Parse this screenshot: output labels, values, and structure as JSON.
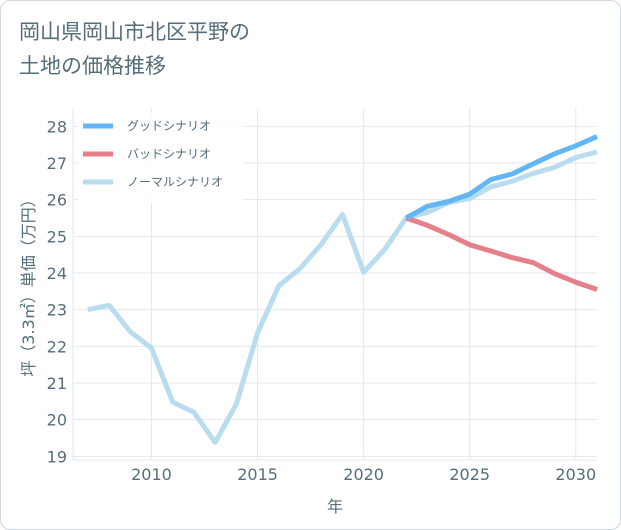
{
  "title": {
    "line1": "岡山県岡山市北区平野の",
    "line2": "土地の価格推移"
  },
  "colors": {
    "good": "#64b5f6",
    "bad": "#e57f8a",
    "normal": "#b9dcee",
    "grid": "#e3e8ec",
    "text": "#546e7a"
  },
  "chart_data": {
    "type": "line",
    "title": "岡山県岡山市北区平野の土地の価格推移",
    "xlabel": "年",
    "ylabel": "坪（3.3㎡）単価（万円）",
    "xlim": [
      2006.3,
      2031
    ],
    "ylim": [
      18.9,
      28.5
    ],
    "xticks": [
      2010,
      2015,
      2020,
      2025,
      2030
    ],
    "yticks": [
      19,
      20,
      21,
      22,
      23,
      24,
      25,
      26,
      27,
      28
    ],
    "grid": true,
    "legend_position": "top-left",
    "series": [
      {
        "name": "グッドシナリオ",
        "color": "#64b5f6",
        "x": [
          2022,
          2023,
          2024,
          2025,
          2026,
          2027,
          2028,
          2029,
          2030,
          2031
        ],
        "y": [
          25.5,
          25.82,
          25.95,
          26.15,
          26.55,
          26.7,
          26.98,
          27.25,
          27.47,
          27.72
        ]
      },
      {
        "name": "バッドシナリオ",
        "color": "#e57f8a",
        "x": [
          2022,
          2023,
          2024,
          2025,
          2026,
          2027,
          2028,
          2029,
          2030,
          2031
        ],
        "y": [
          25.5,
          25.3,
          25.05,
          24.77,
          24.6,
          24.42,
          24.28,
          23.98,
          23.75,
          23.55
        ]
      },
      {
        "name": "ノーマルシナリオ",
        "color": "#b9dcee",
        "x": [
          2007,
          2008,
          2009,
          2010,
          2011,
          2012,
          2013,
          2014,
          2015,
          2016,
          2017,
          2018,
          2019,
          2020,
          2021,
          2022,
          2023,
          2024,
          2025,
          2026,
          2027,
          2028,
          2029,
          2030,
          2031
        ],
        "y": [
          23.0,
          23.12,
          22.4,
          21.95,
          20.48,
          20.2,
          19.38,
          20.43,
          22.37,
          23.65,
          24.12,
          24.78,
          25.6,
          24.02,
          24.65,
          25.5,
          25.65,
          25.92,
          26.03,
          26.35,
          26.5,
          26.72,
          26.88,
          27.15,
          27.3
        ]
      }
    ]
  }
}
